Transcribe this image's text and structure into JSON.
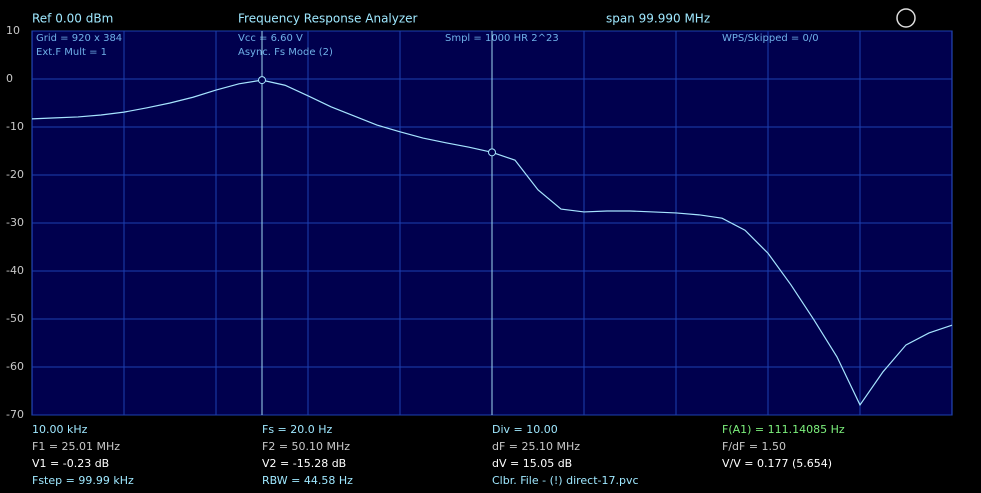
{
  "chart_data": {
    "type": "line",
    "header": [
      "Ref  0.00 dBm",
      "Frequency Response Analyzer",
      "span 99.990 MHz"
    ],
    "info": [
      "Grid = 920 x 384",
      "Ext.F Mult = 1",
      "Vcc = 6.60 V",
      "Async. Fs Mode (2)",
      "Smpl = 1000 HR 2^23",
      "WPS/Skipped  = 0/0"
    ],
    "values": [
      -8.3,
      -8.1,
      -7.9,
      -7.5,
      -6.9,
      -6.0,
      -5.0,
      -3.8,
      -2.3,
      -1.0,
      -0.23,
      -1.3,
      -3.5,
      -5.8,
      -7.7,
      -9.6,
      -11.0,
      -12.3,
      -13.3,
      -14.2,
      -15.28,
      -16.9,
      -23.1,
      -27.1,
      -27.7,
      -27.5,
      -27.5,
      -27.7,
      -27.9,
      -28.3,
      -29.0,
      -31.5,
      -36.3,
      -42.9,
      -50.2,
      -57.9,
      -67.9,
      -61.0,
      -55.4,
      -52.9,
      -51.3
    ],
    "color": "#a6e4ff",
    "ylim": [
      -70,
      10
    ],
    "yticks": [
      -70,
      -60,
      -50,
      -40,
      -30,
      -20,
      -10,
      0,
      10
    ],
    "grid": true,
    "readouts": [
      [
        "10.00 kHz",
        "F1 = 25.01 MHz",
        "V1 = -0.23 dB",
        "Fstep = 99.99 kHz"
      ],
      [
        "Fs = 20.0 Hz",
        "F2 = 50.10 MHz",
        "V2 = -15.28 dB",
        "RBW = 44.58 Hz"
      ],
      [
        "Div = 10.00",
        "dF = 25.10 MHz",
        "dV = 15.05 dB",
        "Clbr. File - (!) direct-17.pvc"
      ],
      [
        "F(A1) = 111.14085 Hz",
        "F/dF = 1.50",
        "V/V = 0.177 (5.654)"
      ]
    ]
  }
}
